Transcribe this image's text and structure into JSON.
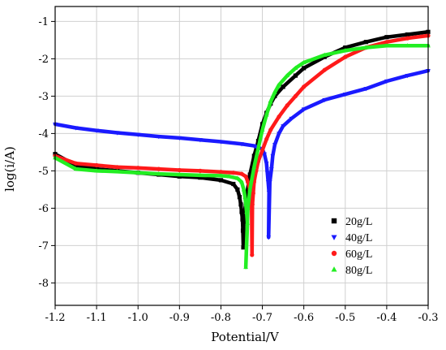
{
  "chart_data": {
    "type": "scatter",
    "title": "",
    "xlabel": "Potential/V",
    "ylabel": "log(i/A)",
    "xlim": [
      -1.2,
      -0.3
    ],
    "ylim": [
      -8.6,
      -0.6
    ],
    "xticks": [
      -1.2,
      -1.1,
      -1.0,
      -0.9,
      -0.8,
      -0.7,
      -0.6,
      -0.5,
      -0.4,
      -0.3
    ],
    "xtick_labels": [
      "-1.2",
      "-1.1",
      "-1.0",
      "-0.9",
      "-0.8",
      "-0.7",
      "-0.6",
      "-0.5",
      "-0.4",
      "-0.3"
    ],
    "yticks": [
      -8,
      -7,
      -6,
      -5,
      -4,
      -3,
      -2,
      -1
    ],
    "ytick_labels": [
      "-8",
      "-7",
      "-6",
      "-5",
      "-4",
      "-3",
      "-2",
      "-1"
    ],
    "grid": true,
    "legend_position": "bottom-right",
    "series": [
      {
        "name": "20g/L",
        "color": "#000000",
        "marker": "square",
        "x": [
          -1.2,
          -1.15,
          -1.1,
          -1.05,
          -1.0,
          -0.95,
          -0.9,
          -0.85,
          -0.8,
          -0.77,
          -0.76,
          -0.755,
          -0.752,
          -0.75,
          -0.748,
          -0.747,
          -0.746,
          -0.745,
          -0.74,
          -0.73,
          -0.72,
          -0.71,
          -0.7,
          -0.69,
          -0.68,
          -0.67,
          -0.65,
          -0.62,
          -0.6,
          -0.55,
          -0.5,
          -0.45,
          -0.4,
          -0.35,
          -0.3
        ],
        "y": [
          -4.55,
          -4.85,
          -4.95,
          -5.0,
          -5.05,
          -5.1,
          -5.15,
          -5.18,
          -5.25,
          -5.35,
          -5.5,
          -5.7,
          -5.9,
          -6.1,
          -6.3,
          -6.6,
          -7.05,
          -6.4,
          -5.8,
          -5.1,
          -4.6,
          -4.2,
          -3.75,
          -3.45,
          -3.2,
          -3.0,
          -2.75,
          -2.45,
          -2.25,
          -1.95,
          -1.7,
          -1.55,
          -1.42,
          -1.35,
          -1.28
        ]
      },
      {
        "name": "40g/L",
        "color": "#1a1aff",
        "marker": "triangle-down",
        "x": [
          -1.2,
          -1.15,
          -1.1,
          -1.05,
          -1.0,
          -0.95,
          -0.9,
          -0.85,
          -0.8,
          -0.75,
          -0.72,
          -0.7,
          -0.695,
          -0.69,
          -0.688,
          -0.686,
          -0.684,
          -0.685,
          -0.682,
          -0.678,
          -0.675,
          -0.67,
          -0.66,
          -0.65,
          -0.63,
          -0.6,
          -0.55,
          -0.5,
          -0.45,
          -0.4,
          -0.35,
          -0.3
        ],
        "y": [
          -3.75,
          -3.85,
          -3.92,
          -3.98,
          -4.03,
          -4.08,
          -4.12,
          -4.17,
          -4.22,
          -4.28,
          -4.33,
          -4.42,
          -4.55,
          -4.8,
          -5.05,
          -5.3,
          -5.58,
          -6.78,
          -5.3,
          -4.95,
          -4.6,
          -4.3,
          -4.0,
          -3.8,
          -3.6,
          -3.35,
          -3.1,
          -2.95,
          -2.8,
          -2.6,
          -2.45,
          -2.32
        ]
      },
      {
        "name": "60g/L",
        "color": "#ff1a1a",
        "marker": "circle",
        "x": [
          -1.2,
          -1.15,
          -1.1,
          -1.05,
          -1.0,
          -0.95,
          -0.9,
          -0.85,
          -0.8,
          -0.77,
          -0.75,
          -0.74,
          -0.735,
          -0.73,
          -0.728,
          -0.726,
          -0.725,
          -0.724,
          -0.722,
          -0.72,
          -0.715,
          -0.71,
          -0.7,
          -0.69,
          -0.68,
          -0.66,
          -0.64,
          -0.62,
          -0.6,
          -0.55,
          -0.5,
          -0.45,
          -0.4,
          -0.35,
          -0.3
        ],
        "y": [
          -4.6,
          -4.8,
          -4.85,
          -4.9,
          -4.92,
          -4.95,
          -4.98,
          -5.0,
          -5.03,
          -5.05,
          -5.08,
          -5.15,
          -5.3,
          -5.5,
          -5.7,
          -5.85,
          -7.25,
          -5.9,
          -5.6,
          -5.3,
          -5.0,
          -4.75,
          -4.45,
          -4.15,
          -3.9,
          -3.55,
          -3.25,
          -3.0,
          -2.75,
          -2.3,
          -1.95,
          -1.7,
          -1.55,
          -1.45,
          -1.38
        ]
      },
      {
        "name": "80g/L",
        "color": "#22ee22",
        "marker": "triangle-up",
        "x": [
          -1.2,
          -1.15,
          -1.1,
          -1.05,
          -1.0,
          -0.95,
          -0.9,
          -0.85,
          -0.8,
          -0.78,
          -0.76,
          -0.75,
          -0.745,
          -0.742,
          -0.74,
          -0.738,
          -0.736,
          -0.74,
          -0.735,
          -0.73,
          -0.72,
          -0.71,
          -0.7,
          -0.69,
          -0.68,
          -0.67,
          -0.66,
          -0.64,
          -0.62,
          -0.6,
          -0.55,
          -0.5,
          -0.45,
          -0.4,
          -0.35,
          -0.3
        ],
        "y": [
          -4.65,
          -4.95,
          -5.0,
          -5.02,
          -5.05,
          -5.08,
          -5.1,
          -5.12,
          -5.13,
          -5.15,
          -5.2,
          -5.3,
          -5.5,
          -5.7,
          -5.9,
          -6.1,
          -6.4,
          -7.58,
          -6.0,
          -5.5,
          -4.9,
          -4.4,
          -3.9,
          -3.5,
          -3.15,
          -2.9,
          -2.7,
          -2.45,
          -2.25,
          -2.1,
          -1.9,
          -1.78,
          -1.7,
          -1.65,
          -1.65,
          -1.65
        ]
      }
    ]
  }
}
